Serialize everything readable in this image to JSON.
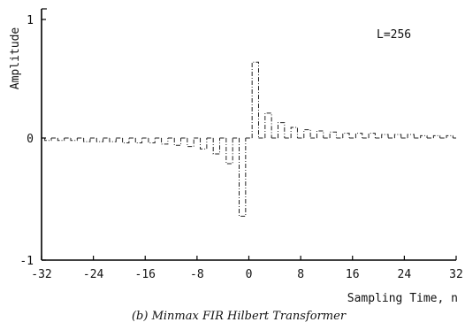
{
  "chart_data": {
    "type": "line",
    "style": "dash-dot step response",
    "annotation": "L=256",
    "ylabel": "Amplitude",
    "xlabel": "Sampling Time, n",
    "caption": "(b) Minmax FIR Hilbert Transformer",
    "xlim": [
      -32,
      32
    ],
    "ylim": [
      -1,
      1
    ],
    "x_ticks": [
      -32,
      -24,
      -16,
      -8,
      0,
      8,
      16,
      24,
      32
    ],
    "x_tick_labels": [
      "-32",
      "-24",
      "-16",
      "-8",
      "0",
      "8",
      "16",
      "24",
      "32"
    ],
    "y_ticks": [
      1,
      0,
      -1
    ],
    "y_tick_labels": [
      "1",
      "0",
      "-1"
    ],
    "grid": false,
    "series": [
      {
        "x": [
          -31,
          -29,
          -27,
          -25,
          -23,
          -21,
          -19,
          -17,
          -15,
          -13,
          -11,
          -9,
          -7,
          -5,
          -3,
          -1,
          1,
          3,
          5,
          7,
          9,
          11,
          13,
          15,
          17,
          19,
          21,
          23,
          25,
          27,
          29,
          31
        ],
        "y": [
          -0.02,
          -0.02,
          -0.02,
          -0.03,
          -0.03,
          -0.03,
          -0.04,
          -0.04,
          -0.04,
          -0.05,
          -0.06,
          -0.07,
          -0.09,
          -0.13,
          -0.21,
          -0.64,
          0.64,
          0.21,
          0.13,
          0.09,
          0.07,
          0.06,
          0.05,
          0.04,
          0.04,
          0.04,
          0.03,
          0.03,
          0.03,
          0.02,
          0.02,
          0.02
        ]
      }
    ]
  }
}
